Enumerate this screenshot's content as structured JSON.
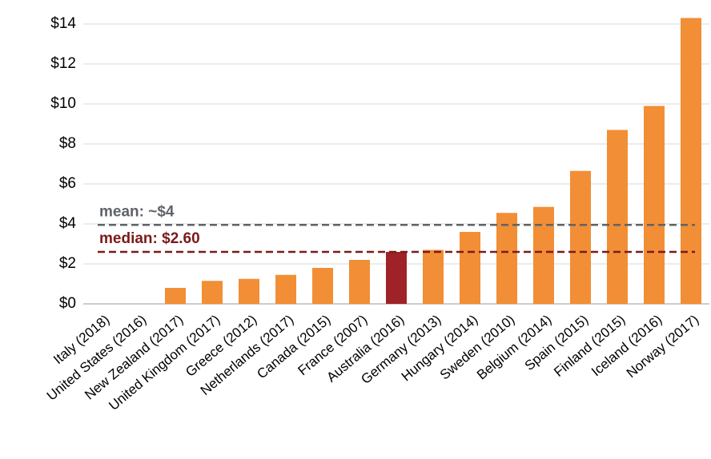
{
  "chart_data": {
    "type": "bar",
    "categories": [
      "Italy (2018)",
      "United States (2016)",
      "New Zealand (2017)",
      "United Kingdom (2017)",
      "Greece (2012)",
      "Netherlands (2017)",
      "Canada (2015)",
      "France (2007)",
      "Australia (2016)",
      "Germany (2013)",
      "Hungary (2014)",
      "Sweden (2010)",
      "Belgium (2014)",
      "Spain (2015)",
      "Finland (2015)",
      "Iceland (2016)",
      "Norway (2017)"
    ],
    "values": [
      0,
      0,
      0.8,
      1.15,
      1.25,
      1.45,
      1.8,
      2.2,
      2.6,
      2.7,
      3.6,
      4.55,
      4.85,
      6.65,
      8.7,
      9.9,
      14.3
    ],
    "colors": [
      "#f28e35",
      "#f28e35",
      "#f28e35",
      "#f28e35",
      "#f28e35",
      "#f28e35",
      "#f28e35",
      "#f28e35",
      "#9e2228",
      "#f28e35",
      "#f28e35",
      "#f28e35",
      "#f28e35",
      "#f28e35",
      "#f28e35",
      "#f28e35",
      "#f28e35"
    ],
    "ylim": [
      0,
      14.5
    ],
    "yticks": [
      {
        "value": 0,
        "label": "$0"
      },
      {
        "value": 2,
        "label": "$2"
      },
      {
        "value": 4,
        "label": "$4"
      },
      {
        "value": 6,
        "label": "$6"
      },
      {
        "value": 8,
        "label": "$8"
      },
      {
        "value": 10,
        "label": "$10"
      },
      {
        "value": 12,
        "label": "$12"
      },
      {
        "value": 14,
        "label": "$14"
      }
    ],
    "grid": true,
    "reference_lines": [
      {
        "label": "mean: ~$4",
        "value": 3.95,
        "color": "#5f6368"
      },
      {
        "label": "median: $2.60",
        "value": 2.6,
        "color": "#7b1a1a"
      }
    ]
  }
}
